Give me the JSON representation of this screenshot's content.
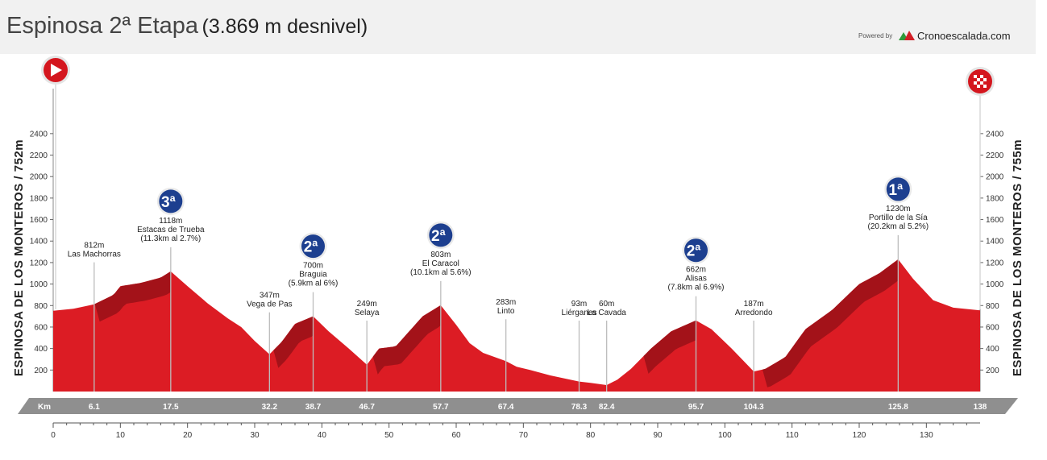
{
  "header": {
    "title_main": "Espinosa 2ª Etapa",
    "title_sub": "(3.869 m desnivel)",
    "powered_by": "Powered by",
    "brand": "Cronoescalada.com"
  },
  "side_labels": {
    "left": "ESPINOSA DE LOS MONTEROS / 752m",
    "right": "ESPINOSA DE LOS MONTEROS / 755m"
  },
  "colors": {
    "profile_red": "#dc1c24",
    "climb_dark": "#9c1218",
    "band_gray": "#8f8f8f",
    "category_blue": "#1d3f8f"
  },
  "chart_data": {
    "type": "area",
    "xlabel": "Km",
    "ylim": [
      0,
      2600
    ],
    "xlim": [
      0,
      138
    ],
    "y_ticks": [
      200,
      400,
      600,
      800,
      1000,
      1200,
      1400,
      1600,
      1800,
      2000,
      2200,
      2400
    ],
    "x_ticks": [
      0,
      10,
      20,
      30,
      40,
      50,
      60,
      70,
      80,
      90,
      100,
      110,
      120,
      130
    ],
    "profile": {
      "x": [
        0,
        3,
        6.1,
        9,
        10,
        13,
        16,
        17.5,
        20,
        23,
        26,
        28,
        30,
        32.2,
        34,
        36,
        38.7,
        41,
        44,
        46.7,
        48.5,
        51,
        53,
        55,
        57.7,
        60,
        62,
        64,
        67.4,
        69,
        71,
        74,
        78.3,
        80,
        82.4,
        84,
        86,
        89,
        92,
        95.7,
        98,
        101,
        104.3,
        106,
        109,
        112,
        116,
        120,
        123,
        125.8,
        128,
        131,
        134,
        138
      ],
      "y": [
        752,
        770,
        812,
        900,
        980,
        1010,
        1060,
        1118,
        980,
        820,
        680,
        600,
        470,
        347,
        460,
        630,
        700,
        560,
        400,
        249,
        400,
        420,
        560,
        700,
        803,
        620,
        450,
        360,
        283,
        230,
        200,
        150,
        93,
        80,
        60,
        110,
        210,
        400,
        560,
        662,
        580,
        400,
        187,
        210,
        320,
        580,
        760,
        1000,
        1100,
        1230,
        1050,
        850,
        780,
        755
      ]
    },
    "climbs": [
      {
        "category": "3ª",
        "name": "Estacas de Trueba",
        "elevation": "1118m",
        "detail": "(11.3km al 2.7%)",
        "km": 17.5,
        "start_km": 6.2
      },
      {
        "category": "2ª",
        "name": "Braguia",
        "elevation": "700m",
        "detail": "(5.9km al 6%)",
        "km": 38.7,
        "start_km": 32.8
      },
      {
        "category": "2ª",
        "name": "El Caracol",
        "elevation": "803m",
        "detail": "(10.1km al 5.6%)",
        "km": 57.7,
        "start_km": 47.6
      },
      {
        "category": "2ª",
        "name": "Alisas",
        "elevation": "662m",
        "detail": "(7.8km al 6.9%)",
        "km": 95.7,
        "start_km": 87.9
      },
      {
        "category": "1ª",
        "name": "Portillo de la Sía",
        "elevation": "1230m",
        "detail": "(20.2km al 5.2%)",
        "km": 125.8,
        "start_km": 105.6
      }
    ],
    "places": [
      {
        "name": "Las Machorras",
        "elevation": "812m",
        "km": 6.1
      },
      {
        "name": "Vega de Pas",
        "elevation": "347m",
        "km": 32.2
      },
      {
        "name": "Selaya",
        "elevation": "249m",
        "km": 46.7
      },
      {
        "name": "Linto",
        "elevation": "283m",
        "km": 67.4
      },
      {
        "name": "Liérganes",
        "elevation": "93m",
        "km": 78.3
      },
      {
        "name": "La Cavada",
        "elevation": "60m",
        "km": 82.4
      },
      {
        "name": "Arredondo",
        "elevation": "187m",
        "km": 104.3
      }
    ],
    "band_km": [
      "6.1",
      "17.5",
      "32.2",
      "38.7",
      "46.7",
      "57.7",
      "67.4",
      "78.3",
      "82.4",
      "95.7",
      "104.3",
      "125.8",
      "138"
    ]
  }
}
